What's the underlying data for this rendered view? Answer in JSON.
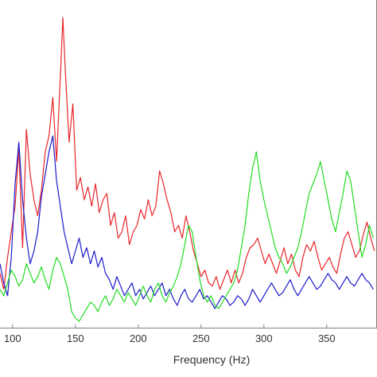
{
  "chart_data": {
    "type": "line",
    "title": "",
    "xlabel": "Frequency (Hz)",
    "ylabel": "",
    "xlim": [
      90,
      390
    ],
    "ylim": [
      0,
      1
    ],
    "grid": false,
    "legend": "none",
    "x_ticks": [
      100,
      150,
      200,
      250,
      300,
      350
    ],
    "x_tick_labels": [
      "100",
      "150",
      "200",
      "250",
      "300",
      "350"
    ],
    "series": [
      {
        "color": "#e8262a",
        "x": [
          90,
          93,
          96,
          99,
          102,
          105,
          108,
          111,
          114,
          117,
          120,
          123,
          126,
          129,
          132,
          135,
          138,
          140,
          142,
          145,
          148,
          151,
          154,
          157,
          160,
          163,
          166,
          169,
          172,
          175,
          178,
          181,
          184,
          187,
          190,
          193,
          196,
          199,
          202,
          205,
          208,
          211,
          214,
          217,
          220,
          223,
          226,
          229,
          232,
          235,
          238,
          241,
          244,
          247,
          250,
          253,
          256,
          259,
          262,
          265,
          268,
          271,
          274,
          277,
          280,
          283,
          286,
          289,
          292,
          295,
          298,
          301,
          304,
          307,
          310,
          313,
          316,
          319,
          322,
          325,
          328,
          331,
          334,
          337,
          340,
          343,
          346,
          349,
          352,
          355,
          358,
          361,
          364,
          367,
          370,
          373,
          376,
          379,
          382,
          385,
          388
        ],
        "y": [
          0.17,
          0.12,
          0.22,
          0.3,
          0.38,
          0.56,
          0.25,
          0.62,
          0.48,
          0.4,
          0.35,
          0.43,
          0.55,
          0.6,
          0.72,
          0.52,
          0.78,
          0.97,
          0.8,
          0.58,
          0.7,
          0.43,
          0.47,
          0.4,
          0.44,
          0.38,
          0.45,
          0.36,
          0.4,
          0.42,
          0.32,
          0.36,
          0.28,
          0.3,
          0.35,
          0.26,
          0.3,
          0.32,
          0.37,
          0.34,
          0.4,
          0.35,
          0.38,
          0.49,
          0.45,
          0.4,
          0.36,
          0.3,
          0.32,
          0.28,
          0.35,
          0.3,
          0.24,
          0.2,
          0.16,
          0.18,
          0.14,
          0.13,
          0.16,
          0.12,
          0.15,
          0.18,
          0.14,
          0.18,
          0.14,
          0.17,
          0.22,
          0.25,
          0.26,
          0.28,
          0.24,
          0.2,
          0.23,
          0.2,
          0.17,
          0.21,
          0.25,
          0.2,
          0.23,
          0.18,
          0.16,
          0.22,
          0.26,
          0.24,
          0.27,
          0.22,
          0.18,
          0.2,
          0.22,
          0.19,
          0.17,
          0.23,
          0.28,
          0.3,
          0.26,
          0.22,
          0.24,
          0.29,
          0.33,
          0.28,
          0.24
        ]
      },
      {
        "color": "#1b1bcc",
        "x": [
          90,
          93,
          96,
          99,
          102,
          105,
          108,
          111,
          114,
          117,
          120,
          123,
          126,
          129,
          132,
          135,
          138,
          141,
          144,
          147,
          150,
          153,
          156,
          159,
          162,
          165,
          168,
          171,
          174,
          177,
          180,
          183,
          186,
          189,
          192,
          195,
          198,
          201,
          204,
          207,
          210,
          213,
          216,
          219,
          222,
          225,
          228,
          231,
          234,
          237,
          240,
          243,
          246,
          249,
          252,
          255,
          258,
          261,
          264,
          267,
          270,
          273,
          276,
          279,
          282,
          285,
          288,
          291,
          294,
          297,
          300,
          303,
          306,
          309,
          312,
          315,
          318,
          321,
          324,
          327,
          330,
          333,
          336,
          339,
          342,
          345,
          348,
          351,
          354,
          357,
          360,
          363,
          366,
          369,
          372,
          375,
          378,
          381,
          384,
          387
        ],
        "y": [
          0.2,
          0.14,
          0.1,
          0.22,
          0.45,
          0.58,
          0.4,
          0.28,
          0.2,
          0.24,
          0.3,
          0.41,
          0.48,
          0.55,
          0.6,
          0.46,
          0.38,
          0.3,
          0.25,
          0.2,
          0.24,
          0.28,
          0.22,
          0.25,
          0.2,
          0.24,
          0.19,
          0.22,
          0.17,
          0.15,
          0.12,
          0.16,
          0.13,
          0.1,
          0.12,
          0.14,
          0.1,
          0.12,
          0.09,
          0.11,
          0.13,
          0.1,
          0.12,
          0.14,
          0.1,
          0.12,
          0.09,
          0.07,
          0.1,
          0.12,
          0.09,
          0.08,
          0.1,
          0.12,
          0.09,
          0.1,
          0.08,
          0.06,
          0.08,
          0.1,
          0.09,
          0.07,
          0.08,
          0.1,
          0.09,
          0.07,
          0.09,
          0.12,
          0.1,
          0.08,
          0.1,
          0.12,
          0.14,
          0.12,
          0.1,
          0.11,
          0.13,
          0.15,
          0.12,
          0.1,
          0.12,
          0.14,
          0.16,
          0.14,
          0.12,
          0.13,
          0.15,
          0.17,
          0.15,
          0.14,
          0.12,
          0.14,
          0.16,
          0.14,
          0.13,
          0.15,
          0.17,
          0.15,
          0.14,
          0.12
        ]
      },
      {
        "color": "#22dd22",
        "x": [
          90,
          93,
          96,
          99,
          102,
          105,
          108,
          111,
          114,
          117,
          120,
          123,
          126,
          129,
          132,
          135,
          138,
          141,
          144,
          147,
          150,
          153,
          156,
          159,
          162,
          165,
          168,
          171,
          174,
          177,
          180,
          183,
          186,
          189,
          192,
          195,
          198,
          201,
          204,
          207,
          210,
          213,
          216,
          219,
          222,
          225,
          228,
          231,
          234,
          237,
          240,
          243,
          246,
          249,
          252,
          255,
          258,
          261,
          264,
          267,
          270,
          273,
          276,
          279,
          282,
          285,
          288,
          291,
          294,
          297,
          300,
          303,
          306,
          309,
          312,
          315,
          318,
          321,
          324,
          327,
          330,
          333,
          336,
          339,
          342,
          345,
          348,
          351,
          354,
          357,
          360,
          363,
          366,
          369,
          372,
          375,
          378,
          381,
          384,
          387
        ],
        "y": [
          0.12,
          0.1,
          0.14,
          0.18,
          0.16,
          0.13,
          0.15,
          0.2,
          0.17,
          0.14,
          0.16,
          0.19,
          0.15,
          0.12,
          0.18,
          0.22,
          0.2,
          0.16,
          0.12,
          0.05,
          0.03,
          0.02,
          0.04,
          0.06,
          0.08,
          0.07,
          0.05,
          0.08,
          0.1,
          0.07,
          0.09,
          0.12,
          0.1,
          0.08,
          0.11,
          0.09,
          0.07,
          0.1,
          0.13,
          0.1,
          0.08,
          0.12,
          0.14,
          0.1,
          0.08,
          0.11,
          0.13,
          0.16,
          0.2,
          0.26,
          0.32,
          0.3,
          0.22,
          0.15,
          0.1,
          0.08,
          0.1,
          0.07,
          0.06,
          0.08,
          0.1,
          0.12,
          0.14,
          0.18,
          0.25,
          0.32,
          0.42,
          0.5,
          0.55,
          0.46,
          0.4,
          0.35,
          0.3,
          0.25,
          0.22,
          0.2,
          0.17,
          0.19,
          0.22,
          0.25,
          0.3,
          0.36,
          0.42,
          0.45,
          0.48,
          0.52,
          0.46,
          0.4,
          0.34,
          0.3,
          0.36,
          0.42,
          0.49,
          0.46,
          0.38,
          0.3,
          0.22,
          0.26,
          0.32,
          0.28
        ]
      }
    ]
  }
}
